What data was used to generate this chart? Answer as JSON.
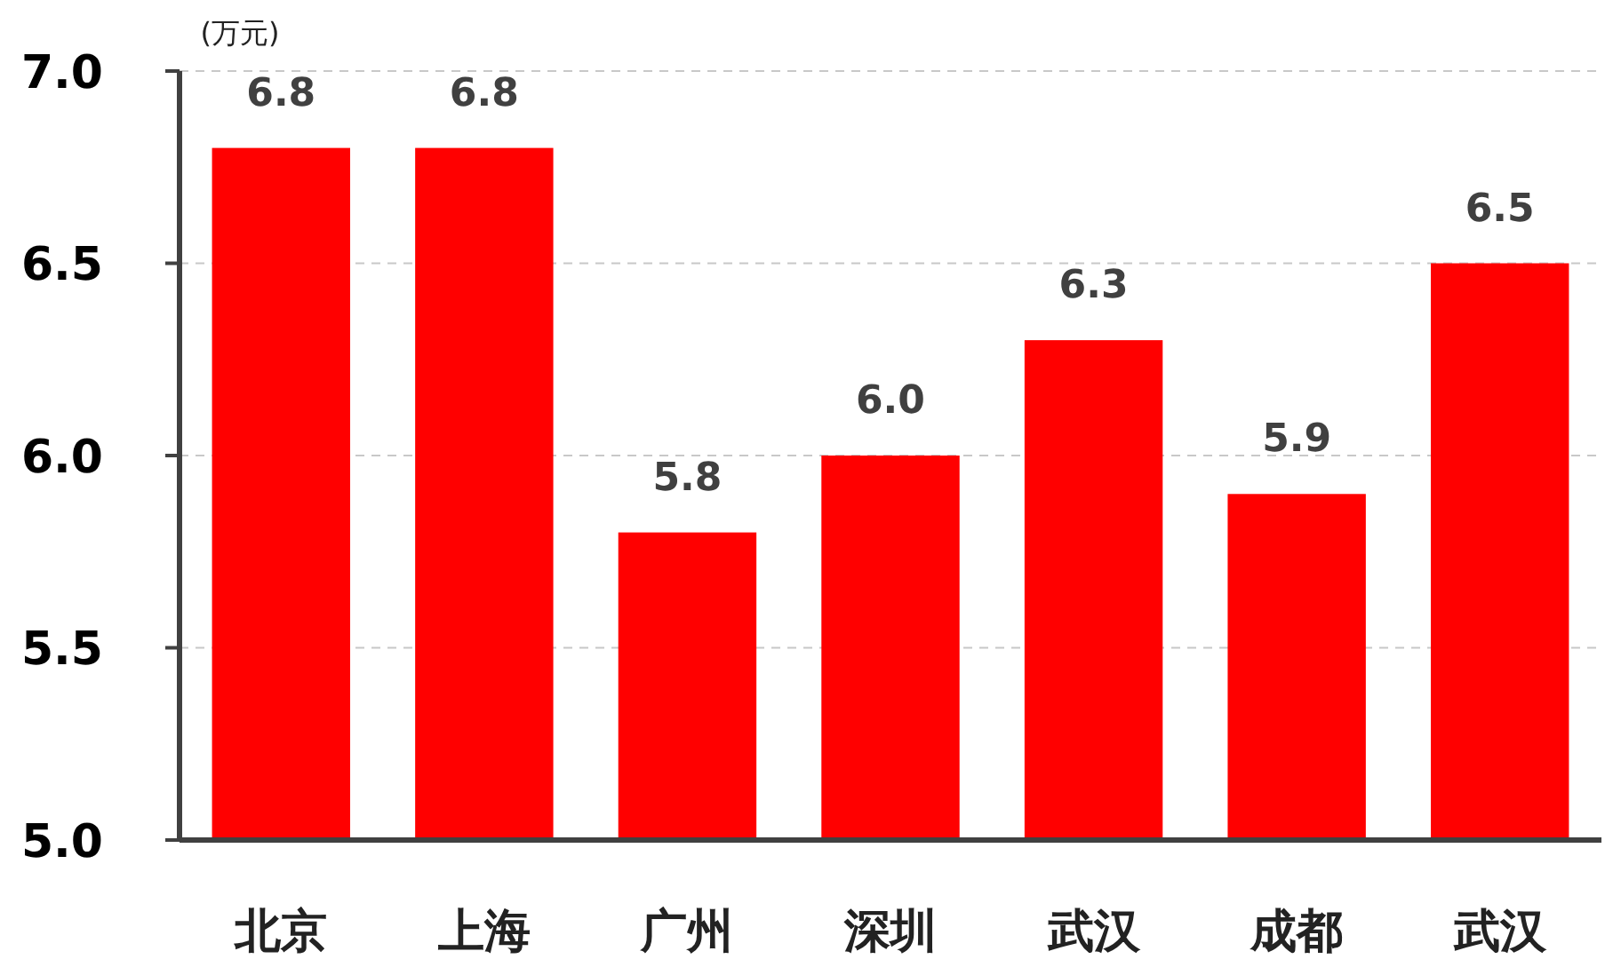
{
  "chart_data": {
    "type": "bar",
    "ylabel": "(万元)",
    "categories": [
      "北京",
      "上海",
      "广州",
      "深圳",
      "武汉",
      "成都",
      "武汉"
    ],
    "values": [
      6.8,
      6.8,
      5.8,
      6.0,
      6.3,
      5.9,
      6.5
    ],
    "color": "#ff0000",
    "ylim": [
      5.0,
      7.0
    ],
    "yticks": [
      {
        "value": 5,
        "label": "5.0"
      },
      {
        "value": 5.5,
        "label": "5.5"
      },
      {
        "value": 6,
        "label": "6.0"
      },
      {
        "value": 6.5,
        "label": "6.5"
      },
      {
        "value": 7,
        "label": "7.0"
      }
    ],
    "grid": "y",
    "value_labels": [
      "6.8",
      "6.8",
      "5.8",
      "6.0",
      "6.3",
      "5.9",
      "6.5"
    ]
  }
}
